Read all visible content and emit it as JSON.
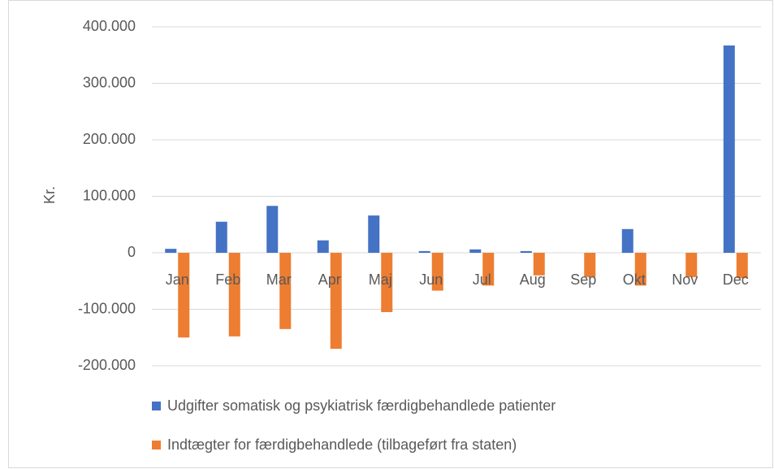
{
  "chart_data": {
    "type": "bar",
    "y_label": "Kr.",
    "categories": [
      "Jan",
      "Feb",
      "Mar",
      "Apr",
      "Maj",
      "Jun",
      "Jul",
      "Aug",
      "Sep",
      "Okt",
      "Nov",
      "Dec"
    ],
    "series": [
      {
        "name": "Udgifter somatisk og psykiatrisk færdigbehandlede patienter",
        "color": "#4472c4",
        "values": [
          7000,
          55000,
          83000,
          22000,
          66000,
          3000,
          6000,
          3000,
          0,
          42000,
          0,
          367000
        ]
      },
      {
        "name": "Indtægter for færdigbehandlede (tilbageført fra staten)",
        "color": "#ed7d31",
        "values": [
          -150000,
          -148000,
          -135000,
          -170000,
          -105000,
          -67000,
          -58000,
          -40000,
          -43000,
          -58000,
          -43000,
          -45000
        ]
      }
    ],
    "ylim": [
      -200000,
      400000
    ],
    "yticks": [
      {
        "value": -200000,
        "label": "-200.000"
      },
      {
        "value": -100000,
        "label": "-100.000"
      },
      0,
      {
        "value": 100000,
        "label": "100.000"
      },
      {
        "value": 200000,
        "label": "200.000"
      },
      {
        "value": 300000,
        "label": "300.000"
      },
      {
        "value": 400000,
        "label": "400.000"
      }
    ],
    "grid": true
  }
}
